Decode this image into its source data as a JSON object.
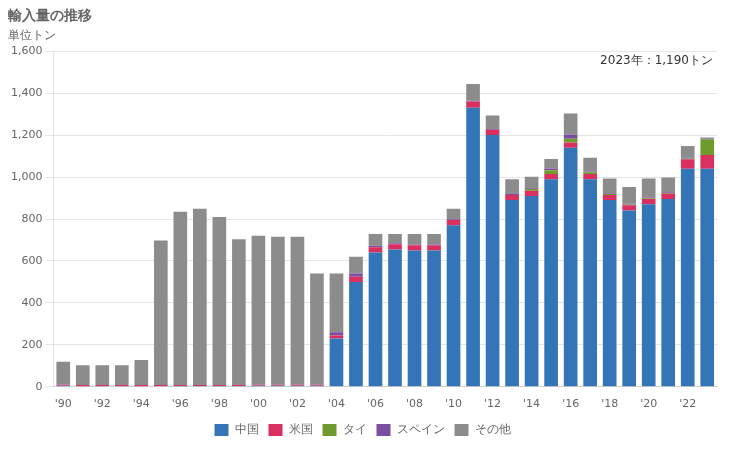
{
  "chart_data": {
    "type": "bar",
    "title": "輸入量の推移",
    "ylabel": "単位トン",
    "annotation": "2023年：1,190トン",
    "categories": [
      "'90",
      null,
      "'92",
      null,
      "'94",
      null,
      "'96",
      null,
      "'98",
      null,
      "'00",
      null,
      "'02",
      null,
      "'04",
      null,
      "'06",
      null,
      "'08",
      null,
      "'10",
      null,
      "'12",
      null,
      "'14",
      null,
      "'16",
      null,
      "'18",
      null,
      "'20",
      null,
      "'22",
      null
    ],
    "series": [
      {
        "name": "中国",
        "color": "#3375b7",
        "values": [
          5,
          3,
          3,
          3,
          3,
          3,
          4,
          4,
          4,
          4,
          5,
          5,
          5,
          5,
          230,
          500,
          640,
          655,
          650,
          650,
          770,
          1330,
          1200,
          890,
          910,
          990,
          1140,
          990,
          890,
          840,
          870,
          895,
          1040,
          1040
        ]
      },
      {
        "name": "米国",
        "color": "#d93060",
        "values": [
          5,
          5,
          5,
          5,
          5,
          5,
          5,
          5,
          5,
          5,
          5,
          5,
          5,
          5,
          15,
          25,
          25,
          25,
          25,
          25,
          25,
          30,
          25,
          25,
          25,
          25,
          25,
          25,
          25,
          25,
          25,
          25,
          45,
          65
        ]
      },
      {
        "name": "タイ",
        "color": "#6e9a2e",
        "values": [
          0,
          0,
          0,
          0,
          0,
          0,
          0,
          0,
          0,
          0,
          0,
          0,
          0,
          0,
          0,
          0,
          0,
          0,
          0,
          0,
          0,
          0,
          0,
          0,
          8,
          18,
          18,
          8,
          4,
          4,
          4,
          4,
          4,
          75
        ]
      },
      {
        "name": "スペイン",
        "color": "#7b4fa0",
        "values": [
          0,
          0,
          0,
          0,
          0,
          0,
          0,
          0,
          0,
          0,
          0,
          0,
          0,
          0,
          15,
          15,
          8,
          4,
          4,
          4,
          4,
          4,
          4,
          4,
          4,
          8,
          20,
          4,
          4,
          4,
          4,
          4,
          4,
          4
        ]
      },
      {
        "name": "その他",
        "color": "#8c8c8c",
        "values": [
          110,
          95,
          95,
          95,
          120,
          690,
          825,
          840,
          800,
          695,
          710,
          705,
          705,
          530,
          280,
          80,
          55,
          45,
          50,
          50,
          50,
          80,
          65,
          70,
          55,
          45,
          100,
          65,
          70,
          80,
          90,
          70,
          55,
          5
        ]
      }
    ],
    "ylim": [
      0,
      1600
    ],
    "yticks": [
      0,
      200,
      400,
      600,
      800,
      {
        "value": 1000,
        "label": "1,000"
      },
      {
        "value": 1200,
        "label": "1,200"
      },
      {
        "value": 1400,
        "label": "1,400"
      },
      {
        "value": 1600,
        "label": "1,600"
      }
    ],
    "stacked": true,
    "grid": "y",
    "legend": "bottom"
  }
}
